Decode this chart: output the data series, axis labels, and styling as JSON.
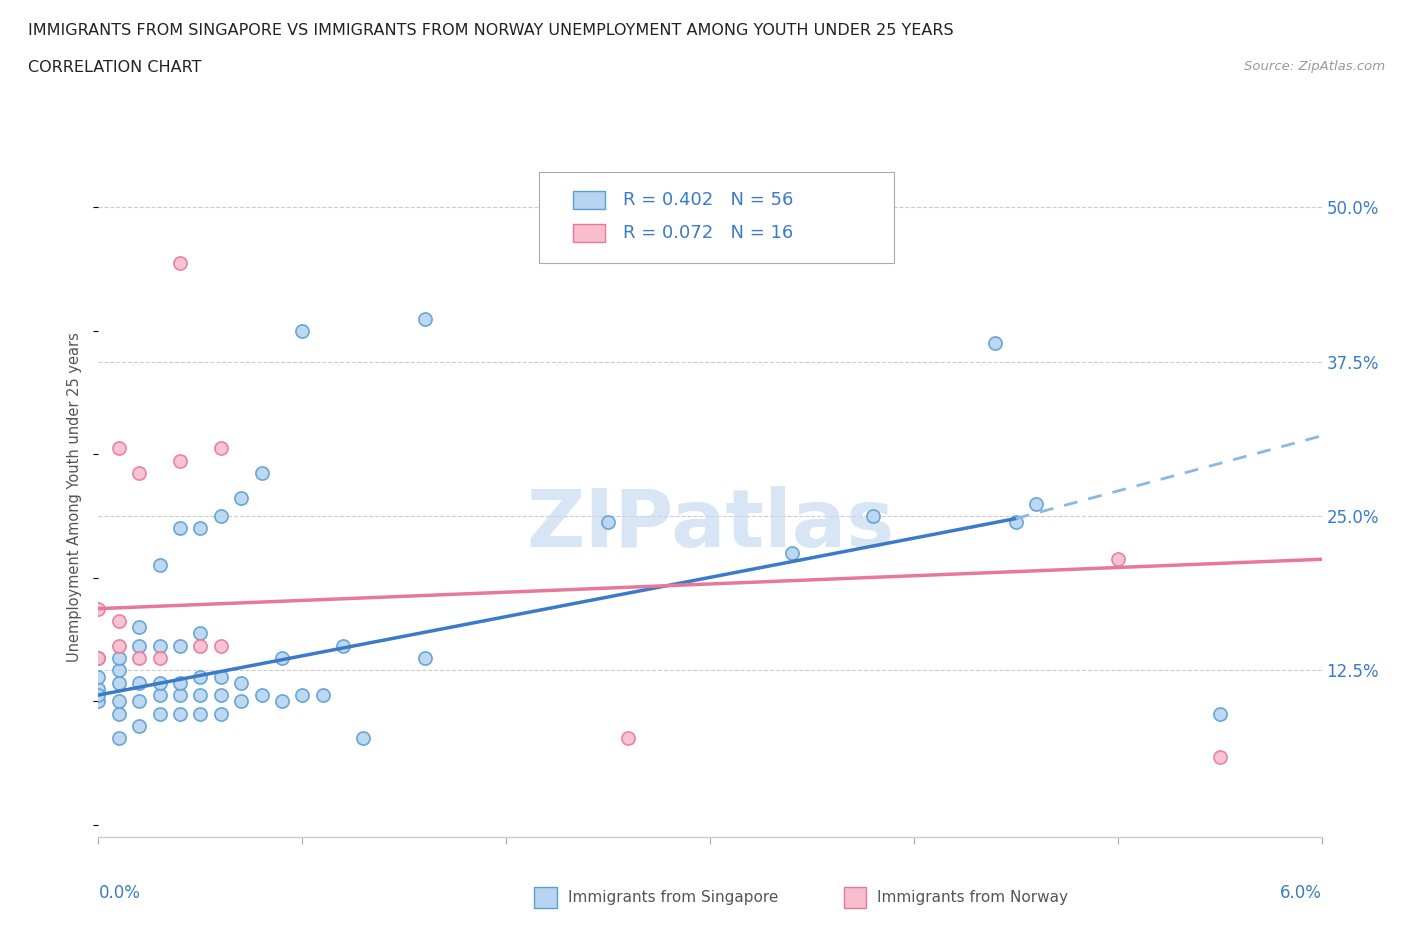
{
  "title_line1": "IMMIGRANTS FROM SINGAPORE VS IMMIGRANTS FROM NORWAY UNEMPLOYMENT AMONG YOUTH UNDER 25 YEARS",
  "title_line2": "CORRELATION CHART",
  "source_text": "Source: ZipAtlas.com",
  "ylabel": "Unemployment Among Youth under 25 years",
  "xlim": [
    0.0,
    0.06
  ],
  "ylim": [
    -0.01,
    0.54
  ],
  "ytick_labels": [
    "12.5%",
    "25.0%",
    "37.5%",
    "50.0%"
  ],
  "ytick_values": [
    0.125,
    0.25,
    0.375,
    0.5
  ],
  "r_singapore": 0.402,
  "n_singapore": 56,
  "r_norway": 0.072,
  "n_norway": 16,
  "color_singapore_fill": "#b8d4f0",
  "color_singapore_edge": "#5a9fd4",
  "color_norway_fill": "#f8bece",
  "color_norway_edge": "#e87898",
  "color_trend_singapore_solid": "#3a7bc8",
  "color_trend_singapore_dash": "#8ab8e0",
  "color_trend_norway": "#e8789a",
  "watermark_text": "ZIPatlas",
  "watermark_color": "#c8daf0",
  "background_color": "#ffffff",
  "grid_color": "#cccccc",
  "singapore_scatter_x": [
    0.0,
    0.0,
    0.0,
    0.0,
    0.0,
    0.001,
    0.001,
    0.001,
    0.001,
    0.001,
    0.001,
    0.002,
    0.002,
    0.002,
    0.002,
    0.002,
    0.003,
    0.003,
    0.003,
    0.003,
    0.003,
    0.004,
    0.004,
    0.004,
    0.004,
    0.004,
    0.005,
    0.005,
    0.005,
    0.005,
    0.005,
    0.006,
    0.006,
    0.006,
    0.006,
    0.007,
    0.007,
    0.007,
    0.008,
    0.008,
    0.009,
    0.009,
    0.01,
    0.01,
    0.011,
    0.012,
    0.013,
    0.016,
    0.016,
    0.025,
    0.034,
    0.038,
    0.044,
    0.045,
    0.046,
    0.055
  ],
  "singapore_scatter_y": [
    0.1,
    0.11,
    0.12,
    0.135,
    0.105,
    0.07,
    0.09,
    0.1,
    0.115,
    0.125,
    0.135,
    0.08,
    0.1,
    0.115,
    0.145,
    0.16,
    0.09,
    0.105,
    0.115,
    0.145,
    0.21,
    0.09,
    0.105,
    0.115,
    0.145,
    0.24,
    0.09,
    0.105,
    0.12,
    0.155,
    0.24,
    0.09,
    0.105,
    0.12,
    0.25,
    0.1,
    0.115,
    0.265,
    0.105,
    0.285,
    0.1,
    0.135,
    0.105,
    0.4,
    0.105,
    0.145,
    0.07,
    0.135,
    0.41,
    0.245,
    0.22,
    0.25,
    0.39,
    0.245,
    0.26,
    0.09
  ],
  "norway_scatter_x": [
    0.0,
    0.0,
    0.001,
    0.001,
    0.001,
    0.002,
    0.002,
    0.003,
    0.004,
    0.004,
    0.005,
    0.006,
    0.006,
    0.026,
    0.05,
    0.055
  ],
  "norway_scatter_y": [
    0.135,
    0.175,
    0.145,
    0.165,
    0.305,
    0.135,
    0.285,
    0.135,
    0.295,
    0.455,
    0.145,
    0.145,
    0.305,
    0.07,
    0.215,
    0.055
  ],
  "sg_trend_x_solid_start": 0.0,
  "sg_trend_x_solid_end": 0.045,
  "sg_trend_x_dash_start": 0.045,
  "sg_trend_x_dash_end": 0.06,
  "sg_trend_y_at_0": 0.105,
  "sg_trend_y_at_045": 0.248,
  "sg_trend_y_at_06": 0.315,
  "no_trend_y_at_0": 0.175,
  "no_trend_y_at_06": 0.215
}
